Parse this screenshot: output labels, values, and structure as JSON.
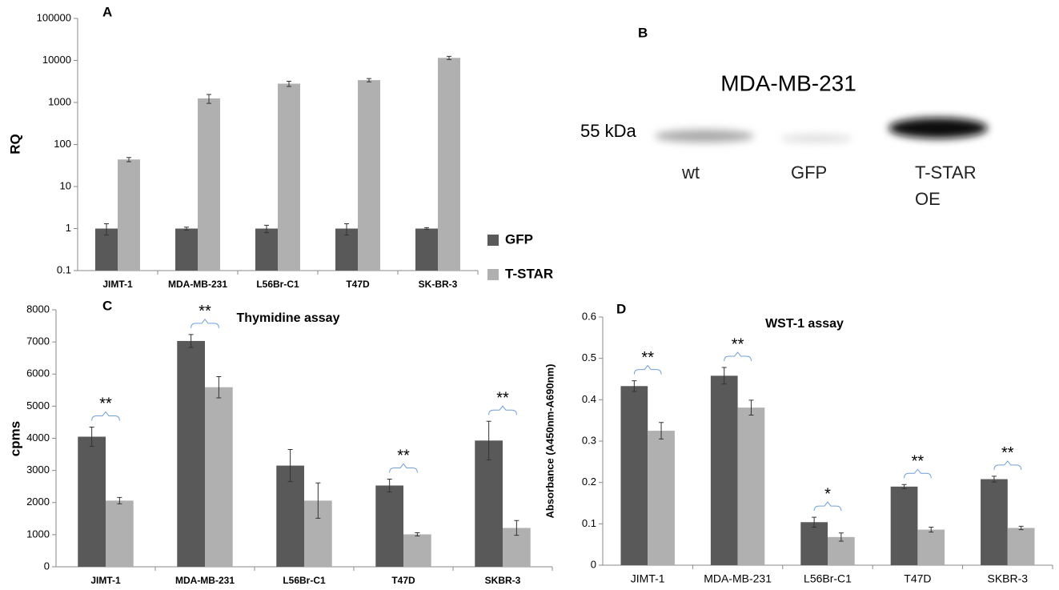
{
  "chart_data": [
    {
      "type": "bar",
      "panel": "A",
      "ylabel": "RQ",
      "log": true,
      "legend": "right",
      "categories": [
        "JIMT-1",
        "MDA-MB-231",
        "L56Br-C1",
        "T47D",
        "SK-BR-3"
      ],
      "series": [
        {
          "name": "GFP",
          "color": "#595959",
          "values": [
            1,
            1,
            1,
            1,
            1
          ],
          "errors": [
            0.3,
            0.08,
            0.2,
            0.3,
            0.05
          ]
        },
        {
          "name": "T-STAR",
          "color": "#b0b0b0",
          "values": [
            44,
            1250,
            2800,
            3400,
            11500
          ],
          "errors": [
            5,
            300,
            400,
            300,
            1000
          ]
        }
      ],
      "ylim": [
        0.1,
        100000
      ],
      "yticks": [
        0.1,
        1,
        10,
        100,
        1000,
        10000,
        100000
      ]
    },
    {
      "type": "blot",
      "panel": "B",
      "title": "MDA-MB-231",
      "marker": "55 kDa",
      "lanes": [
        "wt",
        "GFP",
        "T-STAR OE"
      ]
    },
    {
      "type": "bar",
      "panel": "C",
      "title": "Thymidine assay",
      "ylabel": "cpms",
      "categories": [
        "JIMT-1",
        "MDA-MB-231",
        "L56Br-C1",
        "T47D",
        "SKBR-3"
      ],
      "series": [
        {
          "color": "#595959",
          "values": [
            4050,
            7030,
            3150,
            2530,
            3930
          ],
          "errors": [
            300,
            200,
            500,
            200,
            600
          ]
        },
        {
          "color": "#b0b0b0",
          "values": [
            2060,
            5590,
            2060,
            1010,
            1210
          ],
          "errors": [
            100,
            330,
            550,
            50,
            230
          ]
        }
      ],
      "annotations": [
        "**",
        "**",
        null,
        "**",
        "**"
      ],
      "ylim": [
        0,
        8000
      ],
      "yticks": [
        0,
        1000,
        2000,
        3000,
        4000,
        5000,
        6000,
        7000,
        8000
      ]
    },
    {
      "type": "bar",
      "panel": "D",
      "title": "WST-1 assay",
      "ylabel": "Absorbance (A450nm-A690nm)",
      "categories": [
        "JIMT-1",
        "MDA-MB-231",
        "L56Br-C1",
        "T47D",
        "SKBR-3"
      ],
      "series": [
        {
          "color": "#595959",
          "values": [
            0.433,
            0.458,
            0.104,
            0.19,
            0.208
          ],
          "errors": [
            0.013,
            0.02,
            0.012,
            0.005,
            0.007
          ]
        },
        {
          "color": "#b0b0b0",
          "values": [
            0.325,
            0.381,
            0.068,
            0.086,
            0.09
          ],
          "errors": [
            0.02,
            0.018,
            0.01,
            0.006,
            0.004
          ]
        }
      ],
      "annotations": [
        "**",
        "**",
        "*",
        "**",
        "**"
      ],
      "ylim": [
        0,
        0.6
      ],
      "yticks": [
        0,
        0.1,
        0.2,
        0.3,
        0.4,
        0.5,
        0.6
      ]
    }
  ]
}
